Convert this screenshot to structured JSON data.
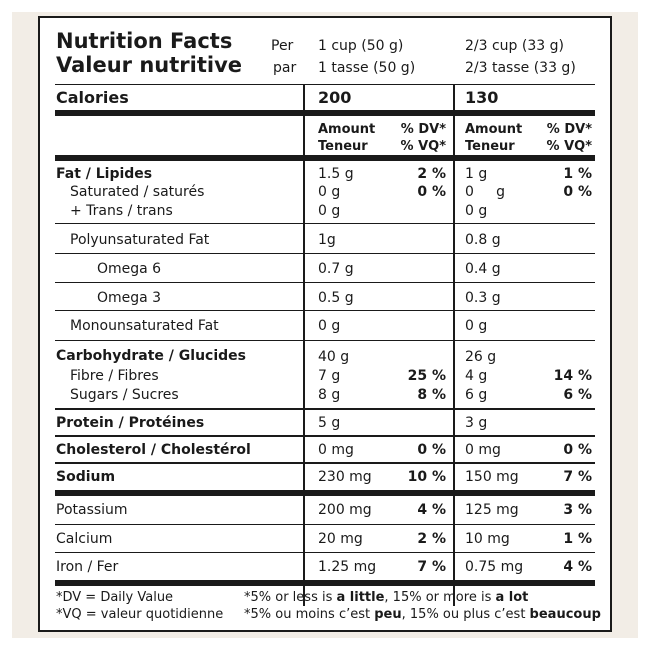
{
  "header": {
    "title_en": "Nutrition Facts",
    "title_fr": "Valeur nutritive",
    "per_en": "Per",
    "per_fr": "par",
    "col1_en": "1 cup (50 g)",
    "col1_fr": "1 tasse (50 g)",
    "col2_en": "2/3 cup (33 g)",
    "col2_fr": "2/3 tasse (33 g)"
  },
  "calories": {
    "label": "Calories",
    "col1": "200",
    "col2": "130"
  },
  "subheader": {
    "amount": "Amount",
    "teneur": "Teneur",
    "dv": "% DV*",
    "vq": "% VQ*"
  },
  "rows": [
    {
      "label": "Fat / Lipides",
      "c1": "1.5 g",
      "d1": "2 %",
      "c2": "1 g",
      "d2": "1 %"
    },
    {
      "label": "Saturated / saturés",
      "c1": "0 g",
      "d1": "0 %",
      "c2": "0     g",
      "d2": "0 %"
    },
    {
      "label": "+ Trans / trans",
      "c1": "0 g",
      "d1": "",
      "c2": "0 g",
      "d2": ""
    },
    {
      "label": "Polyunsaturated Fat",
      "c1": "1g",
      "d1": "",
      "c2": "0.8 g",
      "d2": ""
    },
    {
      "label": "Omega 6",
      "c1": "0.7 g",
      "d1": "",
      "c2": "0.4 g",
      "d2": ""
    },
    {
      "label": "Omega 3",
      "c1": "0.5 g",
      "d1": "",
      "c2": "0.3 g",
      "d2": ""
    },
    {
      "label": "Monounsaturated Fat",
      "c1": "0 g",
      "d1": "",
      "c2": "0 g",
      "d2": ""
    },
    {
      "label": "Carbohydrate / Glucides",
      "c1": "40 g",
      "d1": "",
      "c2": "26 g",
      "d2": ""
    },
    {
      "label": "Fibre / Fibres",
      "c1": "7 g",
      "d1": "25 %",
      "c2": "4 g",
      "d2": "14 %"
    },
    {
      "label": "Sugars / Sucres",
      "c1": "8 g",
      "d1": "8 %",
      "c2": "6 g",
      "d2": "6 %"
    },
    {
      "label": "Protein / Protéines",
      "c1": "5 g",
      "d1": "",
      "c2": "3 g",
      "d2": ""
    },
    {
      "label": "Cholesterol / Cholestérol",
      "c1": "0 mg",
      "d1": "0 %",
      "c2": "0 mg",
      "d2": "0 %"
    },
    {
      "label": "Sodium",
      "c1": "230 mg",
      "d1": "10 %",
      "c2": "150 mg",
      "d2": "7 %"
    },
    {
      "label": "Potassium",
      "c1": "200 mg",
      "d1": "4 %",
      "c2": "125 mg",
      "d2": "3 %"
    },
    {
      "label": "Calcium",
      "c1": "20 mg",
      "d1": "2 %",
      "c2": "10 mg",
      "d2": "1 %"
    },
    {
      "label": "Iron / Fer",
      "c1": "1.25 mg",
      "d1": "7 %",
      "c2": "0.75 mg",
      "d2": "4 %"
    }
  ],
  "footer": {
    "dv_note": "*DV = Daily Value",
    "vq_note": "*VQ = valeur quotidienne",
    "en_a": "*5% or less is ",
    "en_b": "a little",
    "en_c": ", 15% or more is ",
    "en_d": "a lot",
    "fr_a": "*5% ou moins c’est ",
    "fr_b": "peu",
    "fr_c": ", 15% ou plus c’est ",
    "fr_d": "beaucoup"
  }
}
